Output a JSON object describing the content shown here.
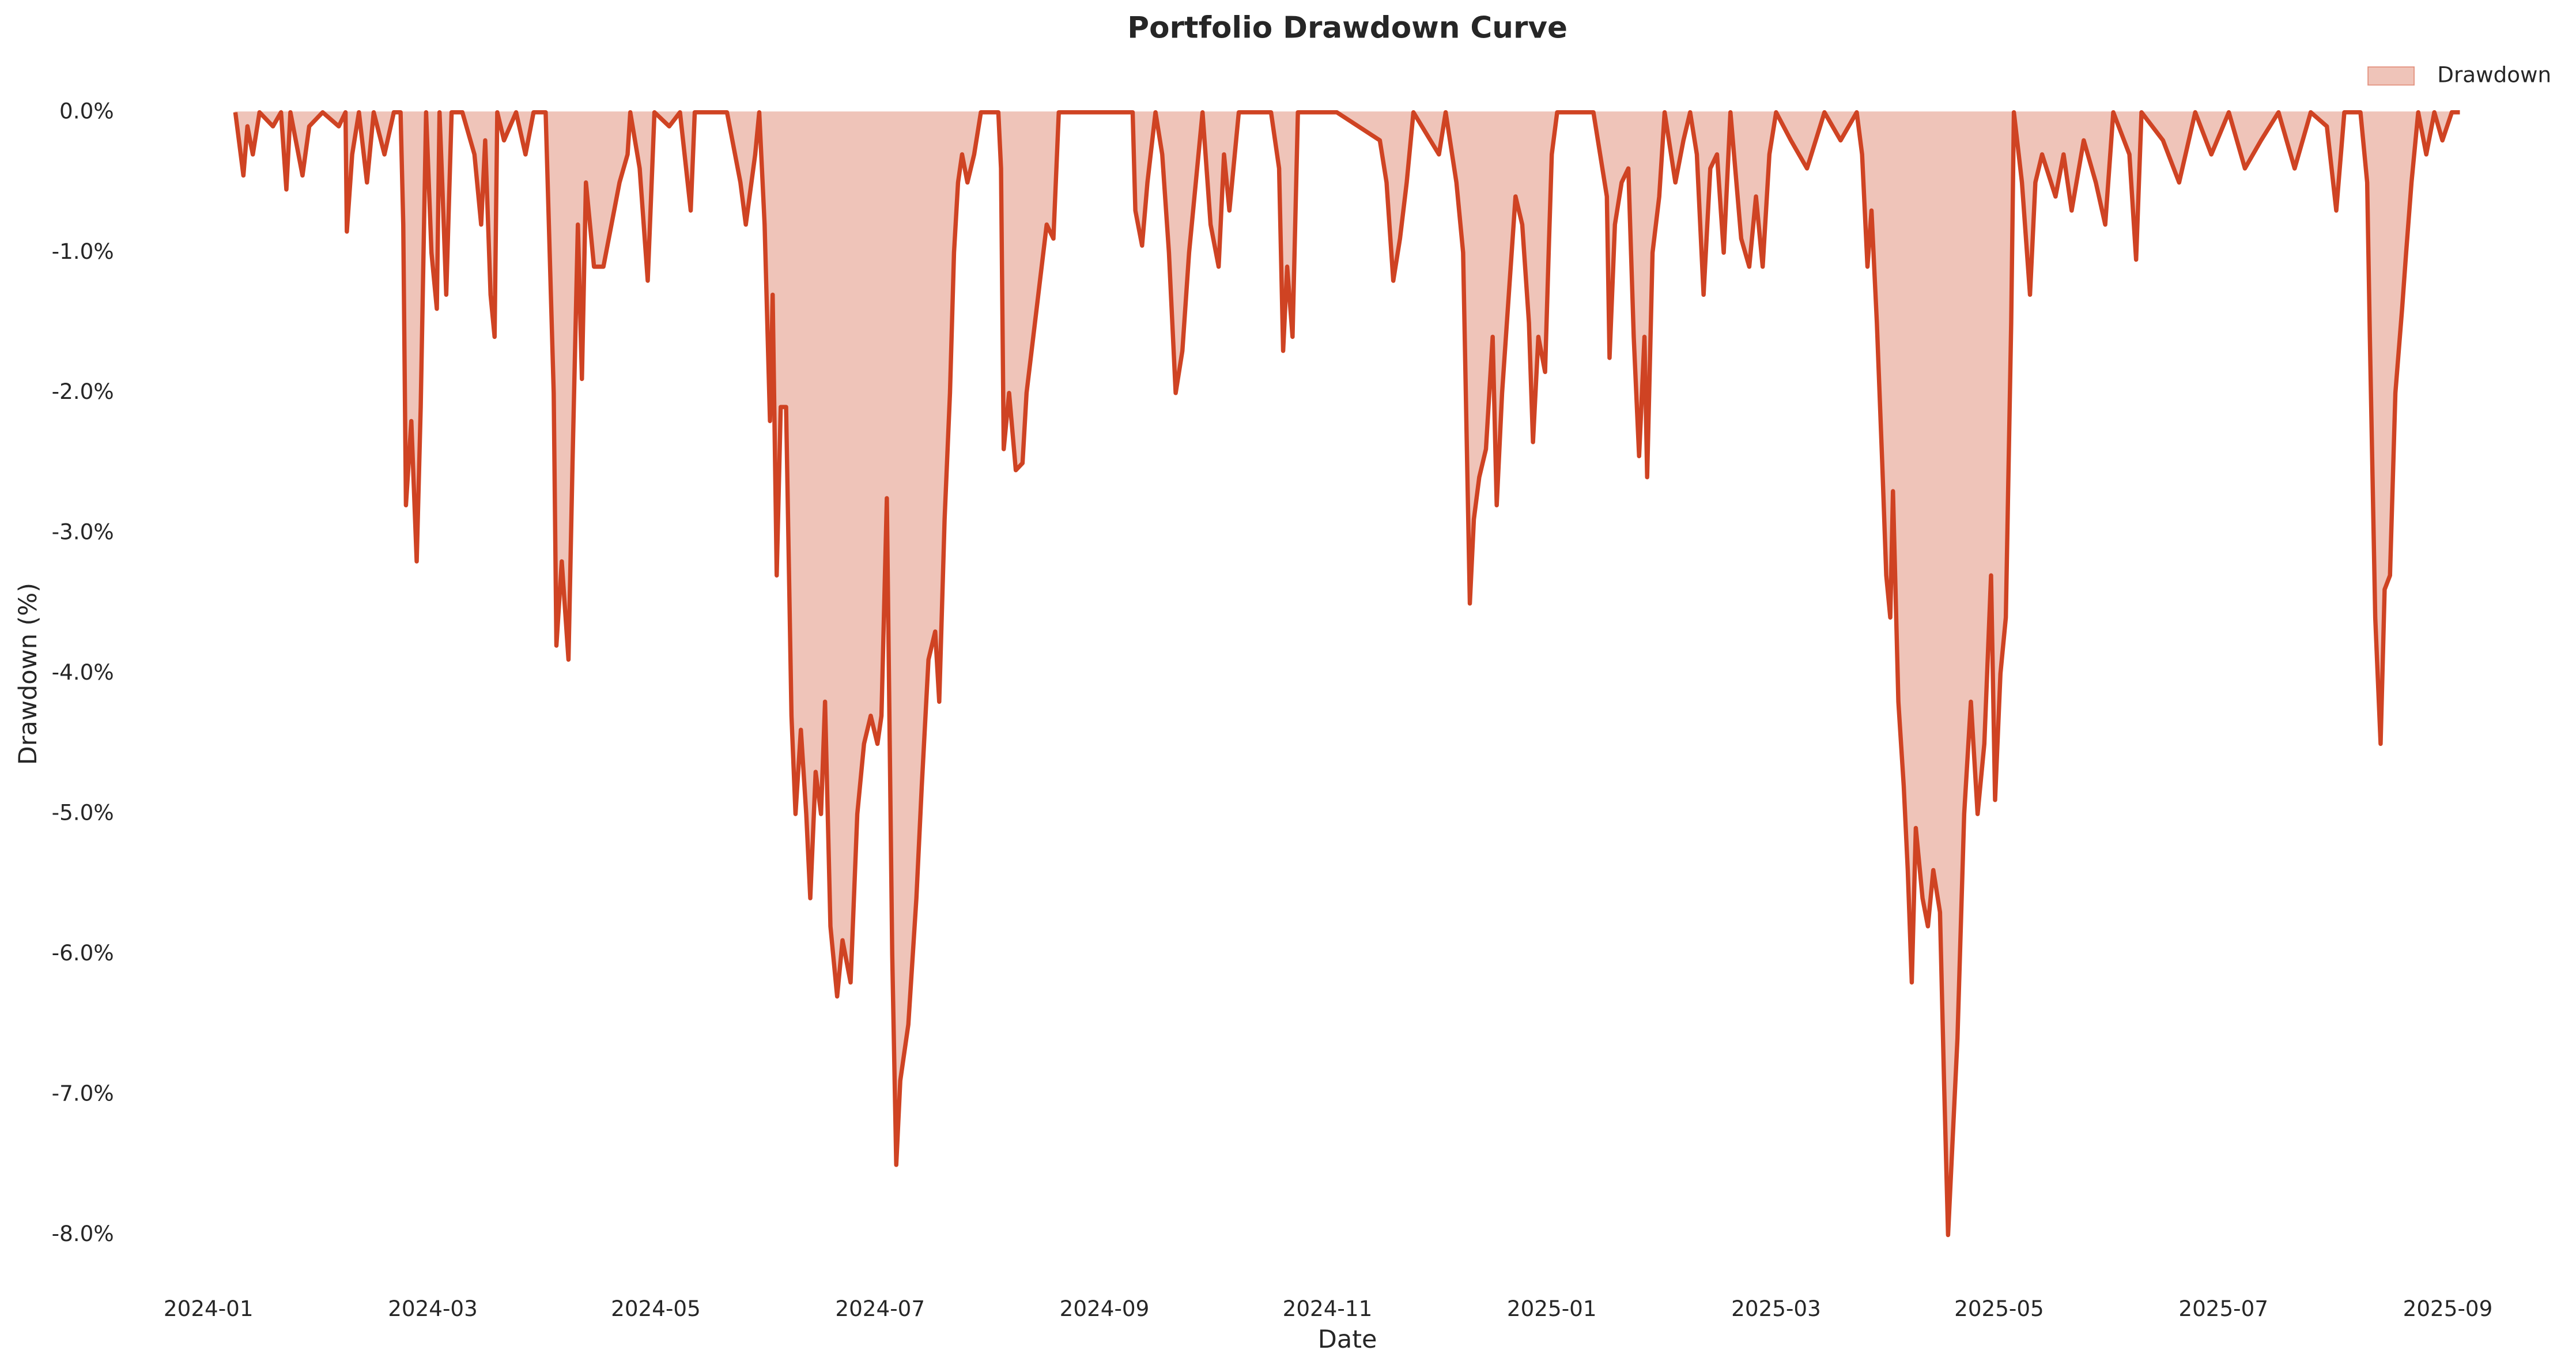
{
  "chart_data": {
    "type": "area",
    "title": "Portfolio Drawdown Curve",
    "x_label": "Date",
    "y_label": "Drawdown (%)",
    "legend": "upper right",
    "grid": false,
    "xlim": [
      2023.937,
      2025.76
    ],
    "ylim": [
      -8.38,
      0.4
    ],
    "xticks": [
      {
        "value": 2024,
        "label": "2024-01"
      },
      {
        "value": 2024.167,
        "label": "2024-03"
      },
      {
        "value": 2024.333,
        "label": "2024-05"
      },
      {
        "value": 2024.5,
        "label": "2024-07"
      },
      {
        "value": 2024.667,
        "label": "2024-09"
      },
      {
        "value": 2024.833,
        "label": "2024-11"
      },
      {
        "value": 2025,
        "label": "2025-01"
      },
      {
        "value": 2025.167,
        "label": "2025-03"
      },
      {
        "value": 2025.333,
        "label": "2025-05"
      },
      {
        "value": 2025.5,
        "label": "2025-07"
      },
      {
        "value": 2025.667,
        "label": "2025-09"
      }
    ],
    "yticks": [
      {
        "value": 0,
        "label": "0.0%"
      },
      {
        "value": -1,
        "label": "-1.0%"
      },
      {
        "value": -2,
        "label": "-2.0%"
      },
      {
        "value": -3,
        "label": "-3.0%"
      },
      {
        "value": -4,
        "label": "-4.0%"
      },
      {
        "value": -5,
        "label": "-5.0%"
      },
      {
        "value": -6,
        "label": "-6.0%"
      },
      {
        "value": -7,
        "label": "-7.0%"
      },
      {
        "value": -8,
        "label": "-8.0%"
      }
    ],
    "x": [
      2024.02,
      2024.026,
      2024.029,
      2024.033,
      2024.038,
      2024.048,
      2024.054,
      2024.058,
      2024.061,
      2024.07,
      2024.075,
      2024.085,
      2024.097,
      2024.102,
      2024.103,
      2024.107,
      2024.112,
      2024.118,
      2024.123,
      2024.131,
      2024.138,
      2024.143,
      2024.145,
      2024.147,
      2024.151,
      2024.155,
      2024.158,
      2024.162,
      2024.166,
      2024.17,
      2024.172,
      2024.174,
      2024.177,
      2024.181,
      2024.189,
      2024.198,
      2024.203,
      2024.206,
      2024.21,
      2024.213,
      2024.215,
      2024.22,
      2024.229,
      2024.236,
      2024.242,
      2024.251,
      2024.254,
      2024.257,
      2024.259,
      2024.263,
      2024.268,
      2024.271,
      2024.275,
      2024.278,
      2024.281,
      2024.287,
      2024.294,
      2024.3,
      2024.306,
      2024.312,
      2024.314,
      2024.321,
      2024.327,
      2024.332,
      2024.343,
      2024.351,
      2024.359,
      2024.362,
      2024.373,
      2024.386,
      2024.396,
      2024.4,
      2024.407,
      2024.41,
      2024.414,
      2024.418,
      2024.42,
      2024.423,
      2024.426,
      2024.43,
      2024.434,
      2024.437,
      2024.441,
      2024.445,
      2024.448,
      2024.452,
      2024.456,
      2024.459,
      2024.463,
      2024.468,
      2024.472,
      2024.478,
      2024.483,
      2024.488,
      2024.493,
      2024.498,
      2024.501,
      2024.505,
      2024.509,
      2024.512,
      2024.515,
      2024.521,
      2024.527,
      2024.531,
      2024.536,
      2024.541,
      2024.544,
      2024.548,
      2024.552,
      2024.555,
      2024.558,
      2024.561,
      2024.565,
      2024.57,
      2024.575,
      2024.588,
      2024.59,
      2024.592,
      2024.596,
      2024.601,
      2024.606,
      2024.609,
      2024.614,
      2024.619,
      2024.624,
      2024.629,
      2024.633,
      2024.656,
      2024.688,
      2024.69,
      2024.695,
      2024.699,
      2024.705,
      2024.71,
      2024.715,
      2024.72,
      2024.725,
      2024.73,
      2024.735,
      2024.74,
      2024.746,
      2024.752,
      2024.756,
      2024.76,
      2024.767,
      2024.791,
      2024.797,
      2024.8,
      2024.803,
      2024.807,
      2024.811,
      2024.84,
      2024.872,
      2024.877,
      2024.882,
      2024.887,
      2024.892,
      2024.897,
      2024.916,
      2024.921,
      2024.929,
      2024.934,
      2024.936,
      2024.939,
      2024.942,
      2024.946,
      2024.951,
      2024.956,
      2024.959,
      2024.963,
      2024.968,
      2024.973,
      2024.978,
      2024.983,
      2024.986,
      2024.99,
      2024.995,
      2024.998,
      2025.0,
      2025.004,
      2025.031,
      2025.041,
      2025.043,
      2025.047,
      2025.052,
      2025.057,
      2025.059,
      2025.061,
      2025.065,
      2025.069,
      2025.071,
      2025.075,
      2025.08,
      2025.084,
      2025.092,
      2025.098,
      2025.103,
      2025.108,
      2025.113,
      2025.118,
      2025.123,
      2025.128,
      2025.133,
      2025.141,
      2025.147,
      2025.152,
      2025.157,
      2025.162,
      2025.167,
      2025.178,
      2025.19,
      2025.203,
      2025.215,
      2025.227,
      2025.231,
      2025.235,
      2025.238,
      2025.242,
      2025.246,
      2025.249,
      2025.252,
      2025.254,
      2025.258,
      2025.262,
      2025.265,
      2025.268,
      2025.271,
      2025.276,
      2025.28,
      2025.284,
      2025.289,
      2025.292,
      2025.295,
      2025.299,
      2025.302,
      2025.307,
      2025.312,
      2025.317,
      2025.322,
      2025.327,
      2025.33,
      2025.334,
      2025.338,
      2025.342,
      2025.344,
      2025.35,
      2025.356,
      2025.36,
      2025.365,
      2025.375,
      2025.381,
      2025.387,
      2025.396,
      2025.405,
      2025.412,
      2025.418,
      2025.43,
      2025.435,
      2025.439,
      2025.455,
      2025.467,
      2025.479,
      2025.491,
      2025.504,
      2025.516,
      2025.528,
      2025.541,
      2025.553,
      2025.565,
      2025.577,
      2025.584,
      2025.59,
      2025.602,
      2025.607,
      2025.609,
      2025.613,
      2025.617,
      2025.62,
      2025.624,
      2025.628,
      2025.633,
      2025.636,
      2025.64,
      2025.645,
      2025.651,
      2025.657,
      2025.663,
      2025.67,
      2025.676
    ],
    "series": [
      {
        "name": "Drawdown",
        "color": "#cf4323",
        "fill_color": "#efc4b9",
        "values": [
          0,
          -0.45,
          -0.1,
          -0.3,
          0,
          -0.1,
          0,
          -0.55,
          0,
          -0.45,
          -0.1,
          0,
          -0.1,
          0,
          -0.85,
          -0.3,
          0,
          -0.5,
          0,
          -0.3,
          0,
          0,
          -0.8,
          -2.8,
          -2.2,
          -3.2,
          -2.1,
          0,
          -1.0,
          -1.4,
          0,
          -0.5,
          -1.3,
          0,
          0,
          -0.3,
          -0.8,
          -0.2,
          -1.3,
          -1.6,
          0,
          -0.2,
          0,
          -0.3,
          0,
          0,
          -1.0,
          -2.0,
          -3.8,
          -3.2,
          -3.9,
          -2.5,
          -0.8,
          -1.9,
          -0.5,
          -1.1,
          -1.1,
          -0.8,
          -0.5,
          -0.3,
          0,
          -0.4,
          -1.2,
          0,
          -0.1,
          0,
          -0.7,
          0,
          0,
          0,
          -0.5,
          -0.8,
          -0.3,
          0,
          -0.8,
          -2.2,
          -1.3,
          -3.3,
          -2.1,
          -2.1,
          -4.3,
          -5.0,
          -4.4,
          -5.0,
          -5.6,
          -4.7,
          -5.0,
          -4.2,
          -5.8,
          -6.3,
          -5.9,
          -6.2,
          -5.0,
          -4.5,
          -4.3,
          -4.5,
          -4.3,
          -2.75,
          -6.0,
          -7.5,
          -6.9,
          -6.5,
          -5.6,
          -4.8,
          -3.9,
          -3.7,
          -4.2,
          -2.9,
          -2.0,
          -1.0,
          -0.5,
          -0.3,
          -0.5,
          -0.3,
          0,
          0,
          -0.4,
          -2.4,
          -2.0,
          -2.55,
          -2.5,
          -2.0,
          -1.6,
          -1.2,
          -0.8,
          -0.9,
          0,
          0,
          0,
          -0.7,
          -0.95,
          -0.5,
          0,
          -0.3,
          -1.0,
          -2.0,
          -1.7,
          -1.0,
          -0.5,
          0,
          -0.8,
          -1.1,
          -0.3,
          -0.7,
          0,
          0,
          -0.4,
          -1.7,
          -1.1,
          -1.6,
          0,
          0,
          -0.2,
          -0.5,
          -1.2,
          -0.9,
          -0.5,
          0,
          -0.3,
          0,
          -0.5,
          -1.0,
          -2.0,
          -3.5,
          -2.9,
          -2.6,
          -2.4,
          -1.6,
          -2.8,
          -2.0,
          -1.3,
          -0.6,
          -0.8,
          -1.5,
          -2.35,
          -1.6,
          -1.85,
          -0.9,
          -0.3,
          0,
          0,
          -0.6,
          -1.75,
          -0.8,
          -0.5,
          -0.4,
          -1.0,
          -1.6,
          -2.45,
          -1.6,
          -2.6,
          -1.0,
          -0.6,
          0,
          -0.5,
          -0.2,
          0,
          -0.3,
          -1.3,
          -0.4,
          -0.3,
          -1.0,
          0,
          -0.9,
          -1.1,
          -0.6,
          -1.1,
          -0.3,
          0,
          -0.2,
          -0.4,
          0,
          -0.2,
          0,
          -0.3,
          -1.1,
          -0.7,
          -1.5,
          -2.5,
          -3.3,
          -3.6,
          -2.7,
          -4.2,
          -4.8,
          -5.4,
          -6.2,
          -5.1,
          -5.6,
          -5.8,
          -5.4,
          -5.7,
          -6.9,
          -8.0,
          -7.2,
          -6.6,
          -5.0,
          -4.2,
          -5.0,
          -4.5,
          -3.3,
          -4.9,
          -4.0,
          -3.6,
          -1.5,
          0,
          -0.5,
          -1.3,
          -0.5,
          -0.3,
          -0.6,
          -0.3,
          -0.7,
          -0.2,
          -0.5,
          -0.8,
          0,
          -0.3,
          -1.05,
          0,
          -0.2,
          -0.5,
          0,
          -0.3,
          0,
          -0.4,
          -0.2,
          0,
          -0.4,
          0,
          -0.1,
          -0.7,
          0,
          0,
          -0.5,
          -1.6,
          -3.6,
          -4.5,
          -3.4,
          -3.3,
          -2.0,
          -1.4,
          -1.0,
          -0.5,
          0,
          -0.3,
          0,
          -0.2,
          0,
          0
        ]
      }
    ]
  }
}
